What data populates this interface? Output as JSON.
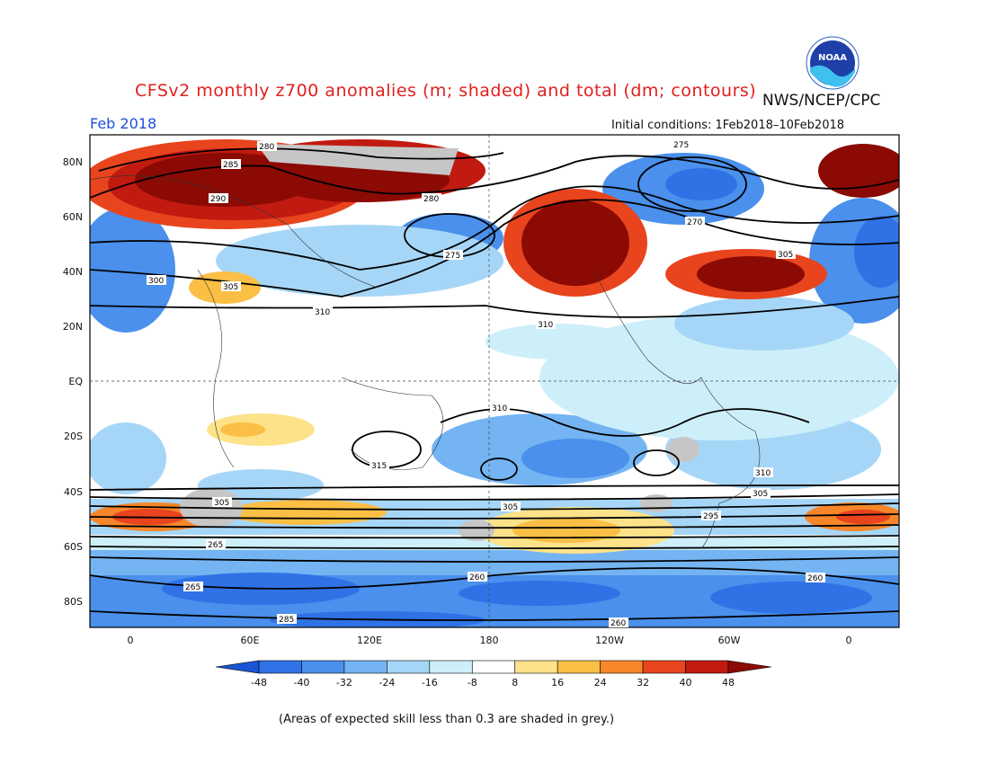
{
  "header": {
    "title": "CFSv2 monthly z700 anomalies (m; shaded) and total (dm; contours)",
    "org": "NWS/NCEP/CPC",
    "month": "Feb 2018",
    "initial_conditions": "Initial conditions: 1Feb2018–10Feb2018",
    "logo_text": "NOAA"
  },
  "axes": {
    "lat_labels": [
      "80N",
      "60N",
      "40N",
      "20N",
      "EQ",
      "20S",
      "40S",
      "60S",
      "80S"
    ],
    "lon_labels": [
      "0",
      "60E",
      "120E",
      "180",
      "120W",
      "60W",
      "0"
    ]
  },
  "colorbar": {
    "ticks": [
      "-48",
      "-40",
      "-32",
      "-24",
      "-16",
      "-8",
      "8",
      "16",
      "24",
      "32",
      "40",
      "48"
    ],
    "colors": [
      "#1a55d6",
      "#2f72e6",
      "#4a90ec",
      "#74b4f2",
      "#a6d6f7",
      "#cdeffa",
      "#ffffff",
      "#fde289",
      "#fbbf45",
      "#f7862a",
      "#e8441e",
      "#c11a10",
      "#8b0a04"
    ]
  },
  "contour_labels": [
    "280",
    "285",
    "290",
    "300",
    "305",
    "310",
    "275",
    "270",
    "265",
    "260",
    "295",
    "315"
  ],
  "footer": {
    "note": "(Areas of expected skill less than 0.3 are shaded in grey.)"
  }
}
